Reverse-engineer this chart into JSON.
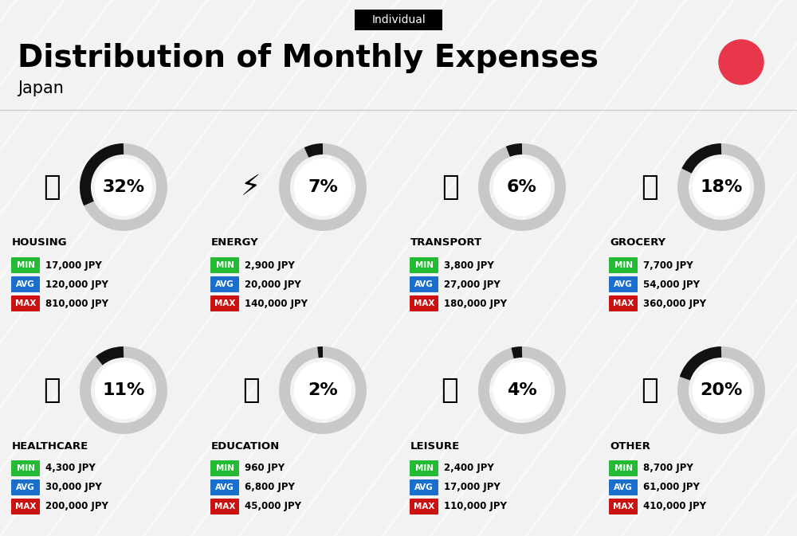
{
  "title": "Distribution of Monthly Expenses",
  "subtitle": "Japan",
  "badge": "Individual",
  "bg_color": "#f2f2f2",
  "categories": [
    {
      "name": "HOUSING",
      "pct": 32,
      "min": "17,000 JPY",
      "avg": "120,000 JPY",
      "max": "810,000 JPY",
      "col": 0,
      "row": 0
    },
    {
      "name": "ENERGY",
      "pct": 7,
      "min": "2,900 JPY",
      "avg": "20,000 JPY",
      "max": "140,000 JPY",
      "col": 1,
      "row": 0
    },
    {
      "name": "TRANSPORT",
      "pct": 6,
      "min": "3,800 JPY",
      "avg": "27,000 JPY",
      "max": "180,000 JPY",
      "col": 2,
      "row": 0
    },
    {
      "name": "GROCERY",
      "pct": 18,
      "min": "7,700 JPY",
      "avg": "54,000 JPY",
      "max": "360,000 JPY",
      "col": 3,
      "row": 0
    },
    {
      "name": "HEALTHCARE",
      "pct": 11,
      "min": "4,300 JPY",
      "avg": "30,000 JPY",
      "max": "200,000 JPY",
      "col": 0,
      "row": 1
    },
    {
      "name": "EDUCATION",
      "pct": 2,
      "min": "960 JPY",
      "avg": "6,800 JPY",
      "max": "45,000 JPY",
      "col": 1,
      "row": 1
    },
    {
      "name": "LEISURE",
      "pct": 4,
      "min": "2,400 JPY",
      "avg": "17,000 JPY",
      "max": "110,000 JPY",
      "col": 2,
      "row": 1
    },
    {
      "name": "OTHER",
      "pct": 20,
      "min": "8,700 JPY",
      "avg": "61,000 JPY",
      "max": "410,000 JPY",
      "col": 3,
      "row": 1
    }
  ],
  "min_color": "#22bb33",
  "avg_color": "#1a6fcc",
  "max_color": "#cc1111",
  "ring_bg": "#c8c8c8",
  "ring_fg": "#111111",
  "red_dot_color": "#e8364a",
  "title_fontsize": 28,
  "subtitle_fontsize": 15,
  "badge_fontsize": 10,
  "pct_fontsize": 16,
  "cat_fontsize": 9.5,
  "val_fontsize": 8.5,
  "label_fontsize": 7.5
}
